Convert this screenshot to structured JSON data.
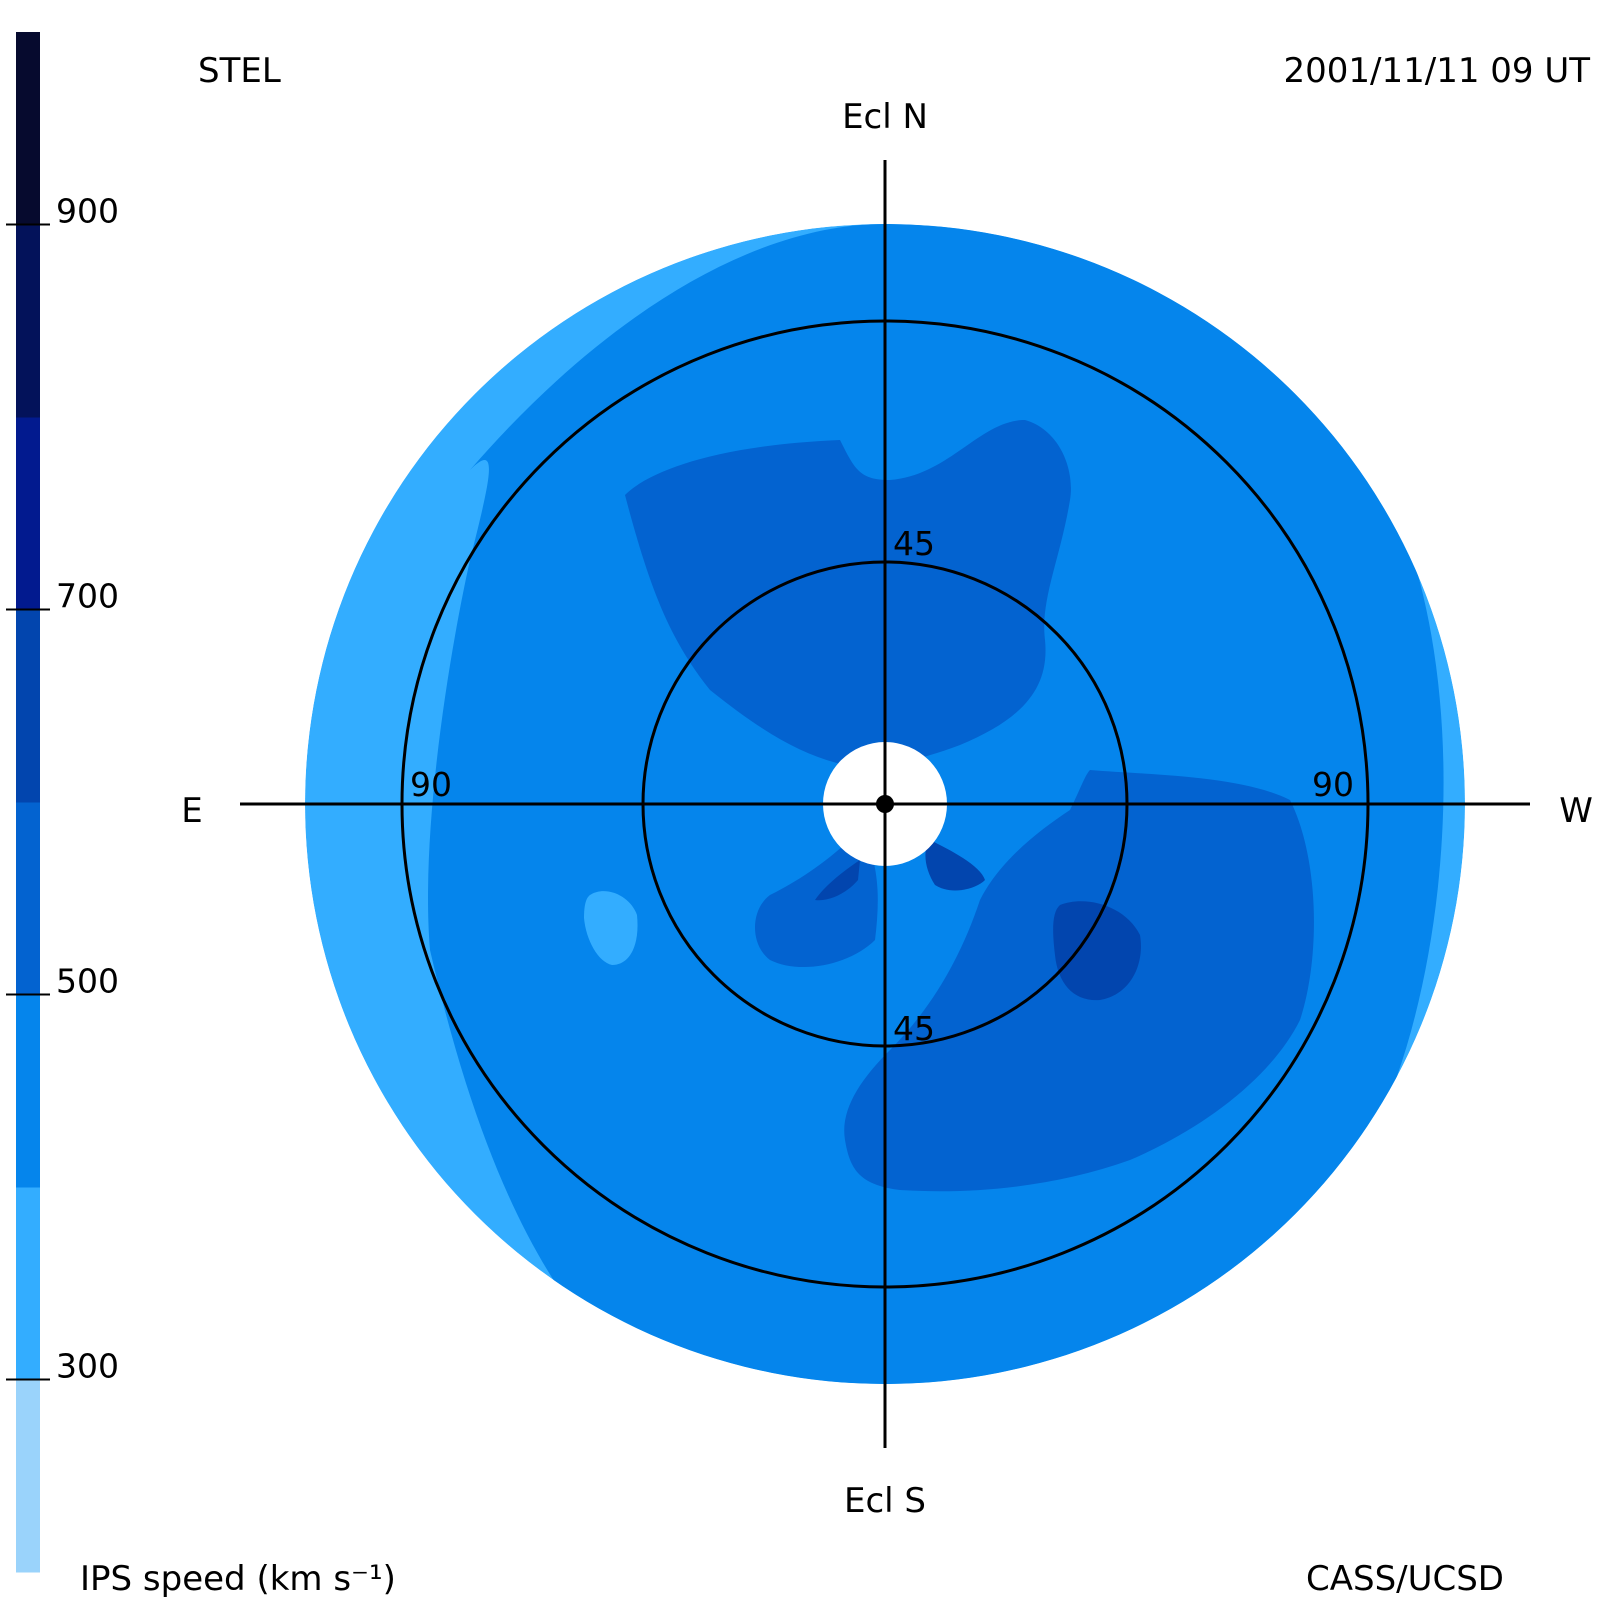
{
  "header": {
    "left_label": "STEL",
    "right_label": "2001/11/11 09 UT"
  },
  "footer": {
    "left_label": "IPS speed (km s⁻¹)",
    "right_label": "CASS/UCSD"
  },
  "compass": {
    "north": "Ecl N",
    "south": "Ecl S",
    "east": "E",
    "west": "W"
  },
  "chart_data": {
    "type": "heatmap",
    "projection": "polar sky map centred on the Sun (elongation rings)",
    "colorbar": {
      "label": "IPS speed (km s⁻¹)",
      "range": [
        200,
        1000
      ],
      "step": 100,
      "ticks": [
        300,
        500,
        700,
        900
      ],
      "bands": [
        {
          "from": 200,
          "to": 300,
          "color": "#9ad3fb"
        },
        {
          "from": 300,
          "to": 400,
          "color": "#33adff"
        },
        {
          "from": 400,
          "to": 500,
          "color": "#0585ec"
        },
        {
          "from": 500,
          "to": 600,
          "color": "#0363d0"
        },
        {
          "from": 600,
          "to": 700,
          "color": "#0245ae"
        },
        {
          "from": 700,
          "to": 800,
          "color": "#021a8f"
        },
        {
          "from": 800,
          "to": 900,
          "color": "#03125a"
        },
        {
          "from": 900,
          "to": 1000,
          "color": "#060a2e"
        }
      ]
    },
    "elongation_rings": [
      45,
      90
    ],
    "ring_labels": [
      {
        "text": "45",
        "side": "north"
      },
      {
        "text": "45",
        "side": "south"
      },
      {
        "text": "90",
        "side": "east"
      },
      {
        "text": "90",
        "side": "west"
      }
    ],
    "map_extent_deg": 120,
    "regions": [
      {
        "speed": 350,
        "note": "outer belt on east side"
      },
      {
        "speed": 450,
        "note": "background speed inside map"
      },
      {
        "speed": 550,
        "note": "northern lobe"
      },
      {
        "speed": 550,
        "note": "south-west lobe"
      },
      {
        "speed": 550,
        "note": "south-east lobe near Sun"
      },
      {
        "speed": 650,
        "note": "core near (45,-15) west-south"
      },
      {
        "speed": 650,
        "note": "small patches near Sun"
      },
      {
        "speed": 350,
        "note": "small patch east-south"
      }
    ]
  }
}
